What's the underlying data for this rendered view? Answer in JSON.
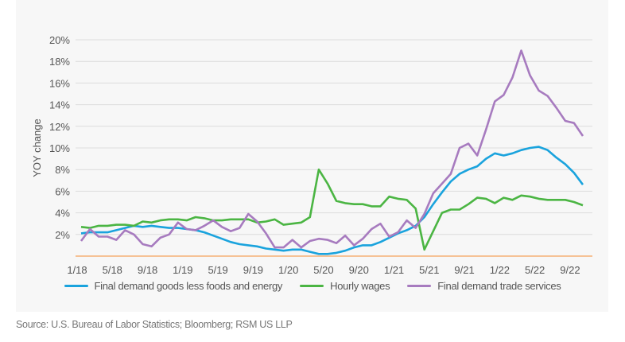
{
  "chart_data": {
    "type": "line",
    "ylabel": "YOY change",
    "xlabel": "",
    "ylim": [
      0,
      20
    ],
    "yticks": [
      "2%",
      "4%",
      "6%",
      "8%",
      "10%",
      "12%",
      "14%",
      "16%",
      "18%",
      "20%"
    ],
    "ytick_values": [
      2,
      4,
      6,
      8,
      10,
      12,
      14,
      16,
      18,
      20
    ],
    "xticks": [
      "1/18",
      "5/18",
      "9/18",
      "1/19",
      "5/19",
      "9/19",
      "1/20",
      "5/20",
      "9/20",
      "1/21",
      "5/21",
      "9/21",
      "1/22",
      "5/22",
      "9/22"
    ],
    "x_start": "1/18",
    "x_end": "10/22",
    "grid": true,
    "legend_position": "bottom",
    "series": [
      {
        "name": "Final demand goods less foods and energy",
        "color": "#1aa3dd",
        "values": [
          2.1,
          2.2,
          2.2,
          2.2,
          2.4,
          2.6,
          2.8,
          2.7,
          2.8,
          2.7,
          2.6,
          2.6,
          2.5,
          2.4,
          2.2,
          1.9,
          1.6,
          1.3,
          1.1,
          1.0,
          0.9,
          0.7,
          0.6,
          0.5,
          0.6,
          0.6,
          0.4,
          0.2,
          0.2,
          0.3,
          0.5,
          0.8,
          1.0,
          1.0,
          1.3,
          1.7,
          2.1,
          2.4,
          2.8,
          3.6,
          4.8,
          5.9,
          6.9,
          7.6,
          8.0,
          8.3,
          9.0,
          9.5,
          9.3,
          9.5,
          9.8,
          10.0,
          10.1,
          9.8,
          9.1,
          8.5,
          7.7,
          6.6
        ]
      },
      {
        "name": "Hourly wages",
        "color": "#4bb543",
        "values": [
          2.7,
          2.6,
          2.8,
          2.8,
          2.9,
          2.9,
          2.8,
          3.2,
          3.1,
          3.3,
          3.4,
          3.4,
          3.3,
          3.6,
          3.5,
          3.3,
          3.3,
          3.4,
          3.4,
          3.4,
          3.1,
          3.2,
          3.4,
          2.9,
          3.0,
          3.1,
          3.6,
          8.0,
          6.7,
          5.1,
          4.9,
          4.8,
          4.8,
          4.6,
          4.6,
          5.5,
          5.3,
          5.2,
          4.4,
          0.6,
          2.3,
          4.0,
          4.3,
          4.3,
          4.8,
          5.4,
          5.3,
          4.9,
          5.4,
          5.2,
          5.6,
          5.5,
          5.3,
          5.2,
          5.2,
          5.2,
          5.0,
          4.7
        ]
      },
      {
        "name": "Final demand trade services",
        "color": "#a77bbf",
        "values": [
          1.4,
          2.5,
          1.8,
          1.8,
          1.5,
          2.4,
          2.0,
          1.1,
          0.9,
          1.7,
          2.0,
          3.1,
          2.5,
          2.4,
          2.8,
          3.3,
          2.7,
          2.3,
          2.6,
          3.9,
          3.2,
          2.1,
          0.8,
          0.8,
          1.5,
          0.8,
          1.4,
          1.6,
          1.5,
          1.2,
          1.9,
          1.0,
          1.6,
          2.5,
          3.0,
          1.8,
          2.2,
          3.3,
          2.6,
          3.9,
          5.8,
          6.7,
          7.6,
          10.0,
          10.4,
          9.3,
          11.7,
          14.3,
          14.9,
          16.5,
          19.0,
          16.7,
          15.3,
          14.8,
          13.7,
          12.5,
          12.3,
          11.1
        ]
      }
    ],
    "baseline_color": "#f5a25d"
  },
  "source": "Source: U.S. Bureau of Labor Statistics; Bloomberg; RSM US LLP"
}
